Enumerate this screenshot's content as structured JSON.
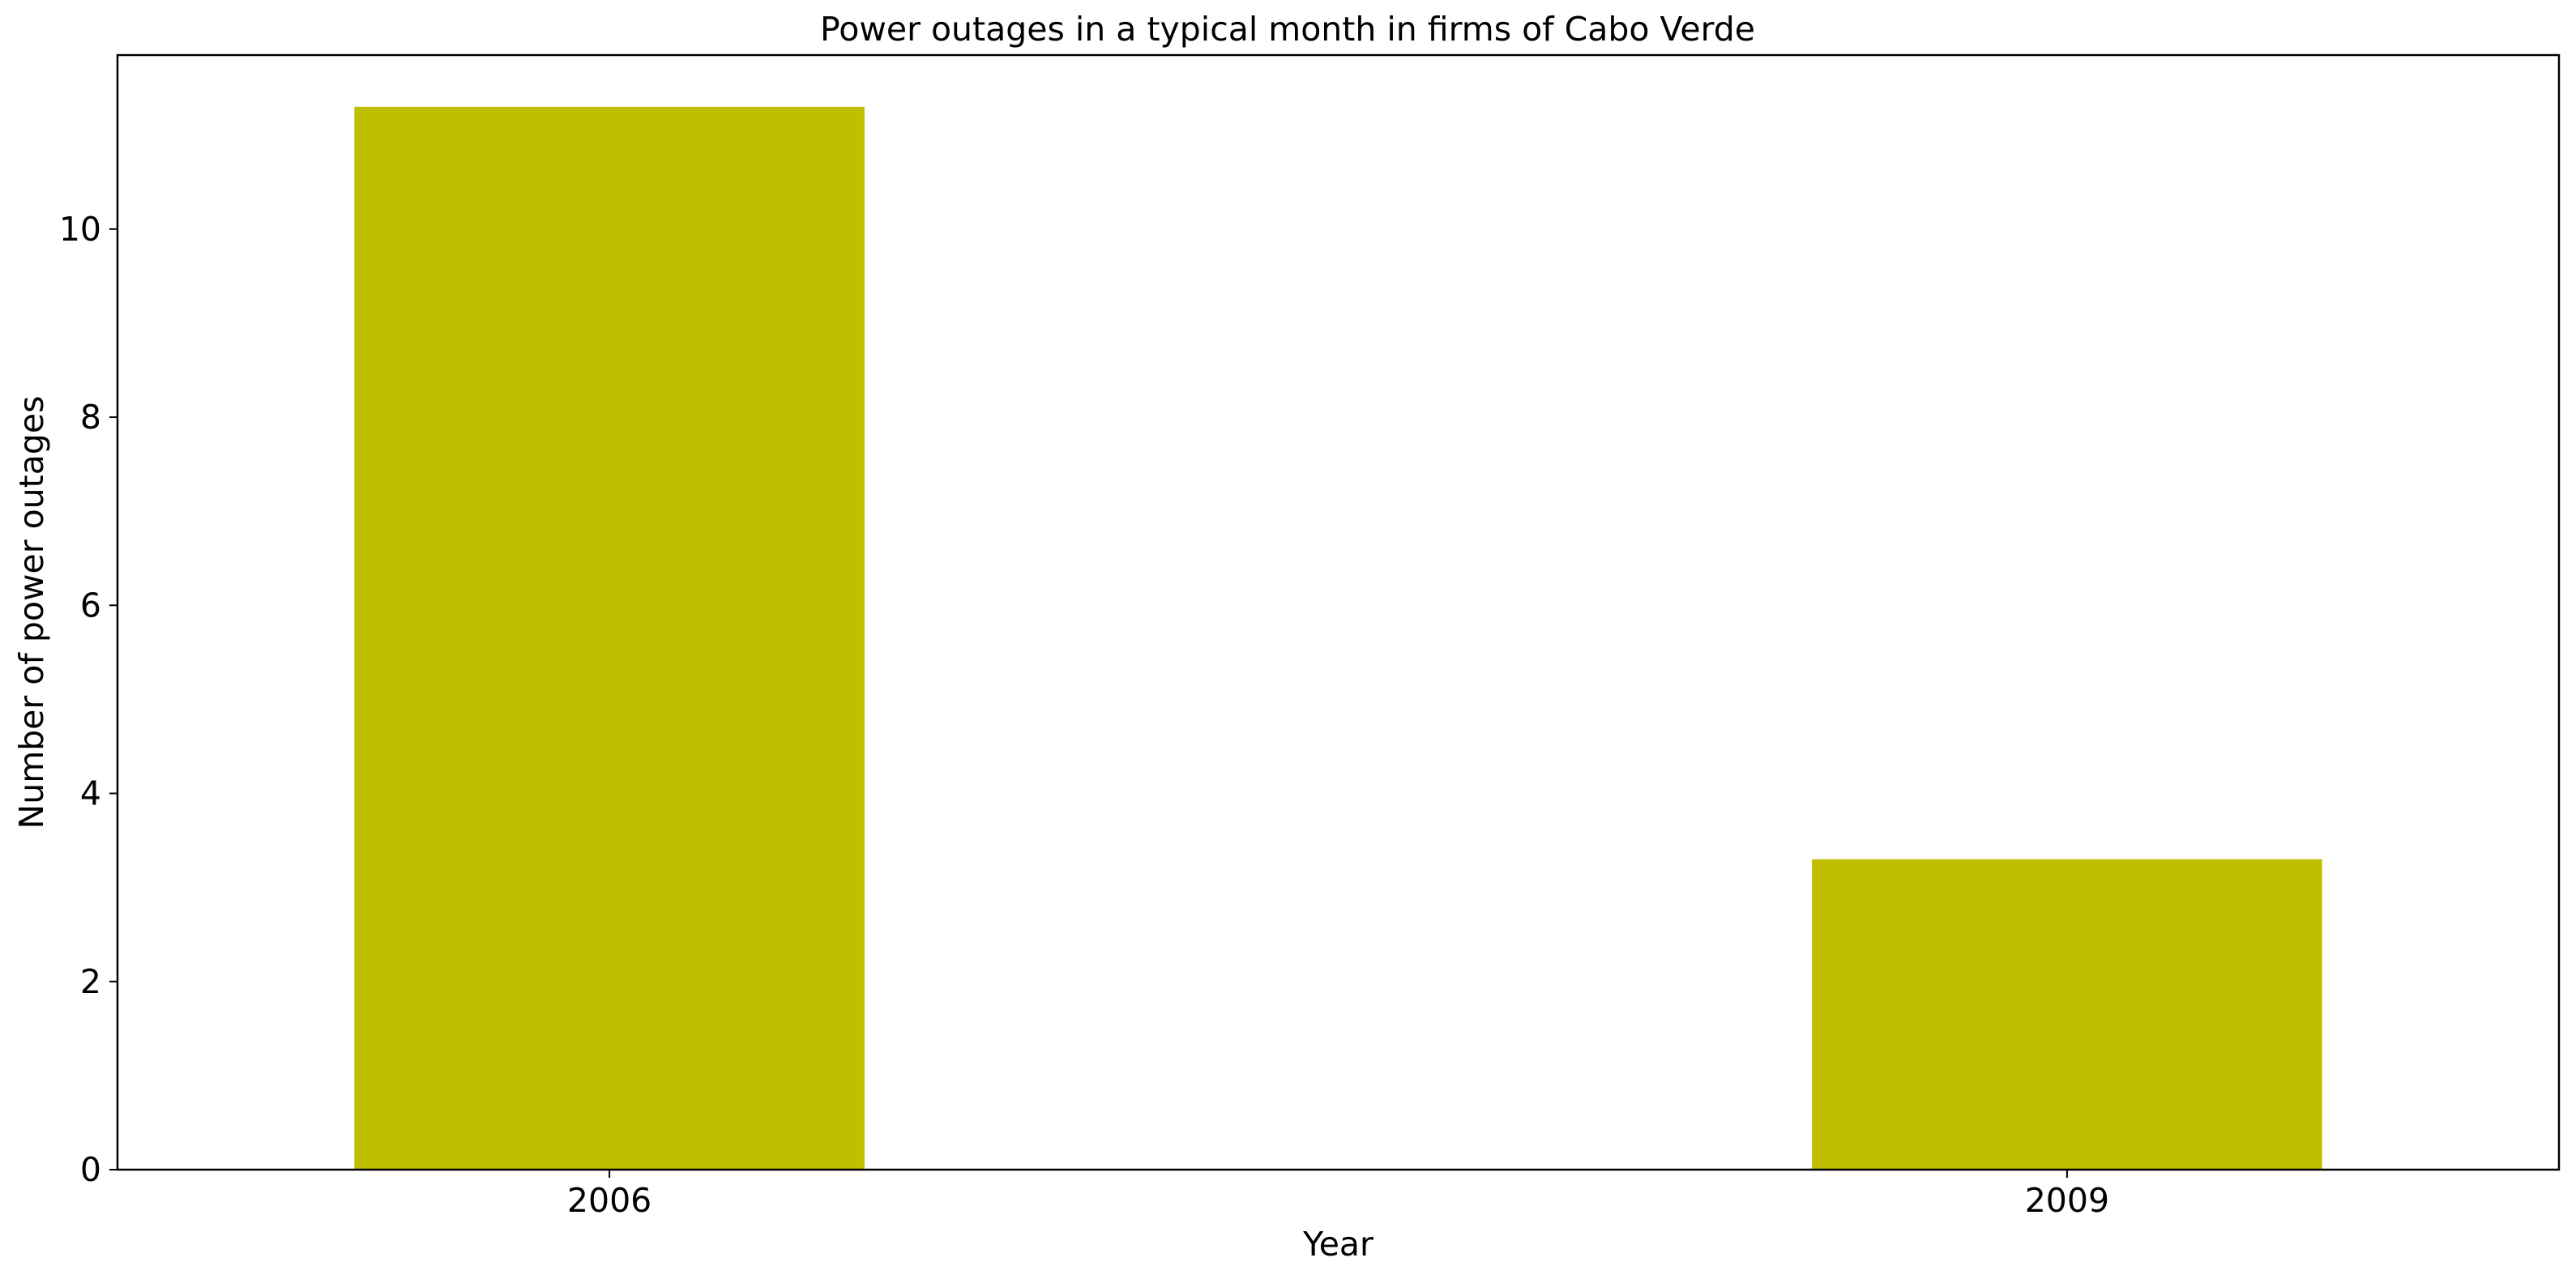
{
  "chart_data": {
    "type": "bar",
    "title": "Power outages in a typical month in firms of Cabo Verde",
    "xlabel": "Year",
    "ylabel": "Number of power outages",
    "categories": [
      "2006",
      "2009"
    ],
    "series": [
      {
        "values": [
          11.3,
          3.3
        ],
        "color": "#bfbf00"
      }
    ],
    "ylim": [
      0,
      11.85
    ],
    "yticks": [
      0,
      2,
      4,
      6,
      8,
      10
    ],
    "grid": false,
    "legend": "none"
  }
}
